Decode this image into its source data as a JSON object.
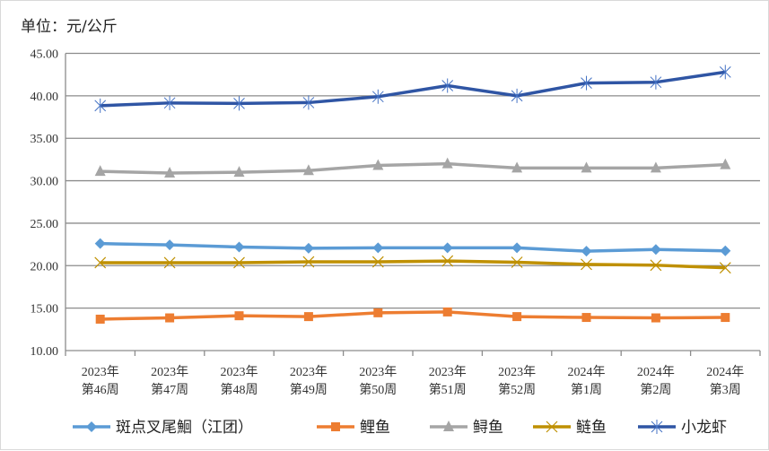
{
  "chart_data": {
    "type": "line",
    "title": "",
    "ylabel": "单位：元/公斤",
    "ylim": [
      10,
      45
    ],
    "yticks": [
      "10.00",
      "15.00",
      "20.00",
      "25.00",
      "30.00",
      "35.00",
      "40.00",
      "45.00"
    ],
    "grid": true,
    "legend": "bottom",
    "categories": [
      [
        "2023年",
        "第46周"
      ],
      [
        "2023年",
        "第47周"
      ],
      [
        "2023年",
        "第48周"
      ],
      [
        "2023年",
        "第49周"
      ],
      [
        "2023年",
        "第50周"
      ],
      [
        "2023年",
        "第51周"
      ],
      [
        "2023年",
        "第52周"
      ],
      [
        "2024年",
        "第1周"
      ],
      [
        "2024年",
        "第2周"
      ],
      [
        "2024年",
        "第3周"
      ]
    ],
    "series": [
      {
        "name": "斑点叉尾鮰（江团）",
        "color": "#5B9BD5",
        "marker": "diamond",
        "values": [
          22.6,
          22.45,
          22.2,
          22.05,
          22.1,
          22.1,
          22.1,
          21.7,
          21.9,
          21.75
        ]
      },
      {
        "name": "鲤鱼",
        "color": "#ED7D31",
        "marker": "square",
        "values": [
          13.7,
          13.85,
          14.1,
          14.0,
          14.45,
          14.55,
          14.0,
          13.9,
          13.85,
          13.9
        ]
      },
      {
        "name": "鲟鱼",
        "color": "#A5A5A5",
        "marker": "triangle",
        "values": [
          31.1,
          30.9,
          31.0,
          31.2,
          31.8,
          32.0,
          31.5,
          31.5,
          31.5,
          31.9
        ]
      },
      {
        "name": "鲢鱼",
        "color": "#BF9000",
        "marker": "x",
        "values": [
          20.35,
          20.35,
          20.35,
          20.45,
          20.45,
          20.55,
          20.4,
          20.15,
          20.05,
          19.75
        ]
      },
      {
        "name": "小龙虾",
        "color": "#2F55A4",
        "marker": "star",
        "values": [
          38.84,
          39.16,
          39.1,
          39.2,
          39.9,
          41.2,
          40.0,
          41.5,
          41.6,
          42.8
        ]
      }
    ]
  }
}
